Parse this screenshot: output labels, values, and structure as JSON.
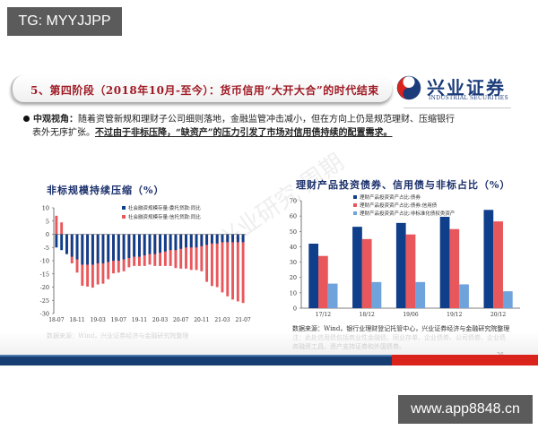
{
  "overlays": {
    "top_left_tag": "TG: MYYJJPP",
    "bottom_right_tag": "www.app8848.cn"
  },
  "header": {
    "title": "5、第四阶段（2018年10月-至今）：货币信用“大开大合”的时代结束",
    "logo_cn": "兴业证券",
    "logo_en": "INDUSTRIAL SECURITIES"
  },
  "bullet": {
    "lead": "中观视角：",
    "text1": "随着资管新规和理财子公司细则落地，金融监管冲击减小，但在方向上仍是规范理财、压缩银行",
    "text2": "表外无序扩张。",
    "emphasis": "不过由于非标压降，“缺资产”的压力引发了市场对信用债持续的配置需求。"
  },
  "background_watermark": "兴业研究 周期",
  "left_chart": {
    "title": "非标规模持续压缩（%）",
    "source": "数据来源：Wind，兴业证券经济与金融研究院整理"
  },
  "right_chart": {
    "title": "理财产品投资债券、信用债与非标占比（%）",
    "source_line1": "数据来源：Wind，银行业理财登记托管中心，兴业证券经济与金融研究院整理",
    "source_line2": "注：此处信用债包括商业性金融债、同业存单、企业债券、公司债券、企业债",
    "source_line3": "务融资工具、资产支持证券和外国债券。"
  },
  "page_number": "26",
  "colors": {
    "title_red": "#a01b25",
    "navy": "#1a3f7a",
    "bar_navy": "#0f3e8a",
    "bar_red": "#e8575b",
    "bar_light_blue": "#6fa3dc",
    "footer_blue": "#163e73",
    "footer_red": "#d9231b"
  },
  "chart_data": [
    {
      "type": "bar",
      "title": "非标规模持续压缩（%）",
      "xlabel": "",
      "ylabel": "",
      "ylim": [
        -30,
        10
      ],
      "yticks": [
        10,
        5,
        0,
        -5,
        -10,
        -15,
        -20,
        -25,
        -30
      ],
      "xtick_labels": [
        "18-07",
        "18-11",
        "19-03",
        "19-07",
        "19-11",
        "20-03",
        "20-07",
        "20-11",
        "21-03",
        "21-07"
      ],
      "categories": [
        "18-07",
        "18-08",
        "18-09",
        "18-10",
        "18-11",
        "18-12",
        "19-01",
        "19-02",
        "19-03",
        "19-04",
        "19-05",
        "19-06",
        "19-07",
        "19-08",
        "19-09",
        "19-10",
        "19-11",
        "19-12",
        "20-01",
        "20-02",
        "20-03",
        "20-04",
        "20-05",
        "20-06",
        "20-07",
        "20-08",
        "20-09",
        "20-10",
        "20-11",
        "20-12",
        "21-01",
        "21-02",
        "21-03",
        "21-04",
        "21-05",
        "21-06",
        "21-07"
      ],
      "legend_position": "top-right",
      "grid": false,
      "series": [
        {
          "name": "社会融资规模存量:委托贷款:同比",
          "color": "#0f3e8a",
          "values": [
            -5,
            -6,
            -7.5,
            -8.5,
            -9.5,
            -11.5,
            -11.5,
            -11.5,
            -11,
            -11,
            -10.5,
            -10,
            -10,
            -9.5,
            -9,
            -8.5,
            -8.5,
            -8,
            -7.5,
            -7.5,
            -7,
            -6.5,
            -6,
            -6,
            -5.5,
            -5,
            -5,
            -5,
            -4.5,
            -4,
            -3.5,
            -3.5,
            -3,
            -3,
            -3,
            -3,
            -3
          ]
        },
        {
          "name": "社会融资规模存量:信托贷款:同比",
          "color": "#e8575b",
          "values": [
            7,
            4.5,
            -7.5,
            -11,
            -14.5,
            -19.5,
            -19.8,
            -20.2,
            -19,
            -18.7,
            -17,
            -14.8,
            -14.5,
            -14,
            -12.5,
            -12,
            -12,
            -12,
            -11.5,
            -12,
            -12,
            -12,
            -12,
            -12.8,
            -13,
            -13,
            -13.5,
            -13.5,
            -14,
            -18,
            -19.6,
            -20,
            -22,
            -23.5,
            -24.7,
            -25.4,
            -26
          ]
        }
      ]
    },
    {
      "type": "bar",
      "title": "理财产品投资债券、信用债与非标占比（%）",
      "xlabel": "",
      "ylabel": "",
      "ylim": [
        0,
        70
      ],
      "yticks": [
        0,
        10,
        20,
        30,
        40,
        50,
        60,
        70
      ],
      "categories": [
        "17/12",
        "18/12",
        "19/06",
        "19/12",
        "20/12"
      ],
      "legend_position": "top-center",
      "grid": false,
      "series": [
        {
          "name": "理财产品投资资产占比:债券",
          "color": "#0f3e8a",
          "values": [
            42,
            53,
            55.5,
            59.5,
            64
          ]
        },
        {
          "name": "理财产品投资资产占比:债券:信用债",
          "color": "#e8575b",
          "values": [
            34,
            45,
            48,
            51.5,
            56.5
          ]
        },
        {
          "name": "理财产品投资资产占比:非标准化债权类资产",
          "color": "#6fa3dc",
          "values": [
            16,
            17,
            17,
            15.5,
            11
          ]
        }
      ]
    }
  ]
}
